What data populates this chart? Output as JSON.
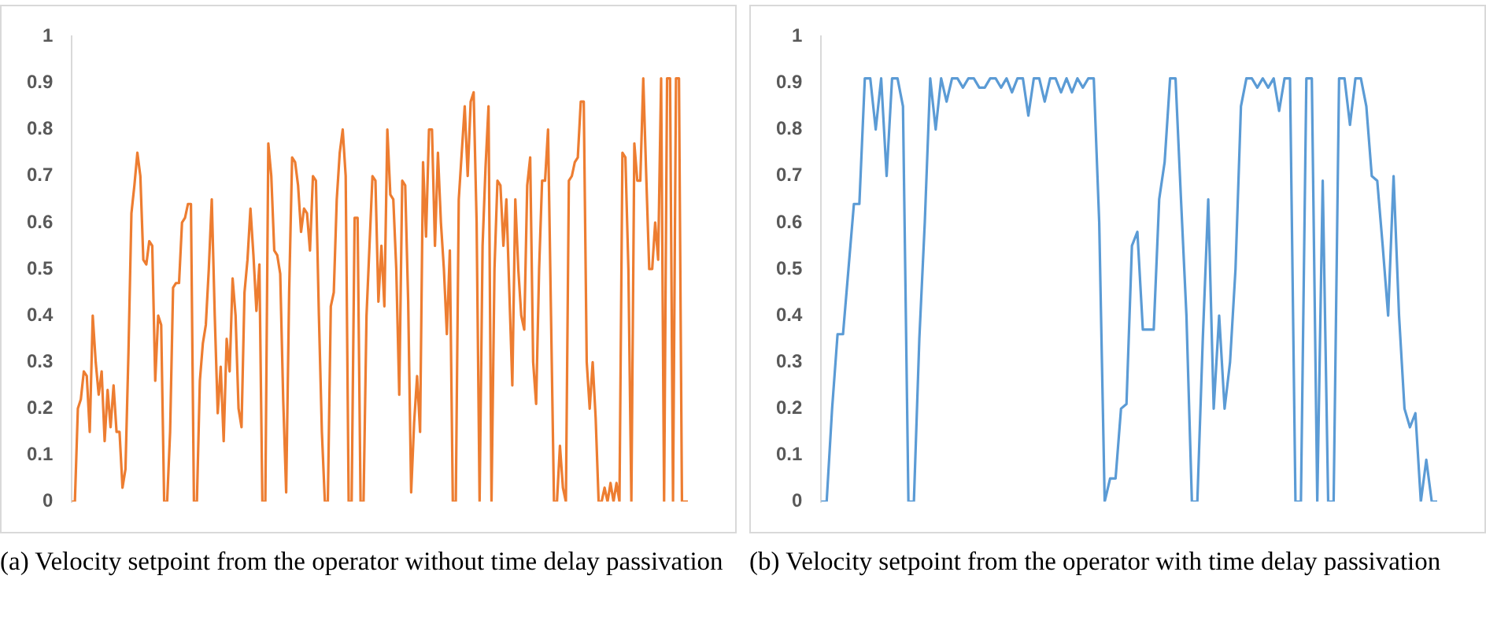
{
  "chart_data": [
    {
      "type": "line",
      "title": "(a) Velocity setpoint from the operator without time delay passivation",
      "categories": [
        null,
        null,
        null,
        null,
        null,
        null,
        null,
        null,
        null,
        null,
        null,
        null,
        null,
        null,
        null,
        null,
        null,
        null,
        null,
        null,
        null,
        null,
        null,
        null,
        null,
        null,
        null,
        null,
        null,
        null,
        null,
        null,
        null,
        null,
        null,
        null,
        null,
        null,
        null,
        null,
        null,
        null,
        null,
        null,
        null,
        null,
        null,
        null,
        null,
        null,
        null,
        null,
        null,
        null,
        null,
        null,
        null,
        null,
        null,
        null,
        null,
        null,
        null,
        null,
        null,
        null,
        null,
        null,
        null,
        null,
        null,
        null,
        null,
        null,
        null,
        null,
        null,
        null,
        null,
        null,
        null,
        null,
        null,
        null,
        null,
        null,
        null,
        null,
        null,
        null,
        null,
        null,
        null,
        null,
        null,
        null,
        null,
        null,
        null,
        null,
        null,
        null,
        null,
        null,
        null,
        null,
        null,
        null,
        null,
        null,
        null,
        null,
        null,
        null,
        null,
        null,
        null,
        null,
        null,
        null,
        null,
        null,
        null,
        null,
        null,
        null,
        null,
        null,
        null,
        null,
        null,
        null,
        null,
        null,
        null,
        null,
        null,
        null,
        null,
        null,
        null,
        null,
        null,
        null,
        null,
        null,
        null,
        null,
        null,
        null,
        null,
        null,
        null,
        null,
        null,
        null,
        null,
        null,
        null,
        null,
        null,
        null,
        null,
        null,
        null,
        null,
        null,
        null,
        null,
        null,
        null,
        null,
        null,
        null,
        null,
        null,
        null,
        null,
        null,
        null,
        null,
        null,
        null,
        null,
        null,
        null,
        null,
        null,
        null,
        null,
        null,
        null,
        null,
        null,
        null,
        null,
        null,
        null,
        null,
        null,
        null,
        null,
        null,
        null,
        null,
        null,
        null,
        null
      ],
      "series": [
        {
          "color": "#ed7d31",
          "values": [
            0,
            0,
            0.2,
            0.22,
            0.28,
            0.27,
            0.15,
            0.4,
            0.3,
            0.23,
            0.28,
            0.13,
            0.24,
            0.16,
            0.25,
            0.15,
            0.15,
            0.03,
            0.07,
            0.32,
            0.62,
            0.68,
            0.75,
            0.7,
            0.52,
            0.51,
            0.56,
            0.55,
            0.26,
            0.4,
            0.38,
            0,
            0,
            0.15,
            0.46,
            0.47,
            0.47,
            0.6,
            0.61,
            0.64,
            0.64,
            0,
            0,
            0.26,
            0.34,
            0.38,
            0.5,
            0.65,
            0.4,
            0.19,
            0.29,
            0.13,
            0.35,
            0.28,
            0.48,
            0.4,
            0.2,
            0.16,
            0.45,
            0.52,
            0.63,
            0.53,
            0.41,
            0.51,
            0,
            0,
            0.77,
            0.7,
            0.54,
            0.53,
            0.49,
            0.22,
            0.02,
            0.45,
            0.74,
            0.73,
            0.68,
            0.58,
            0.63,
            0.62,
            0.54,
            0.7,
            0.69,
            0.4,
            0.15,
            0,
            0,
            0.42,
            0.45,
            0.65,
            0.75,
            0.8,
            0.7,
            0,
            0,
            0.61,
            0.61,
            0,
            0,
            0.4,
            0.55,
            0.7,
            0.69,
            0.43,
            0.55,
            0.42,
            0.8,
            0.66,
            0.65,
            0.5,
            0.23,
            0.69,
            0.68,
            0.43,
            0.02,
            0.17,
            0.27,
            0.15,
            0.73,
            0.57,
            0.8,
            0.8,
            0.55,
            0.75,
            0.6,
            0.5,
            0.36,
            0.54,
            0,
            0,
            0.65,
            0.75,
            0.85,
            0.7,
            0.86,
            0.88,
            0.6,
            0,
            0.55,
            0.72,
            0.85,
            0,
            0.5,
            0.69,
            0.68,
            0.55,
            0.65,
            0.45,
            0.25,
            0.65,
            0.5,
            0.4,
            0.37,
            0.68,
            0.74,
            0.3,
            0.21,
            0.5,
            0.69,
            0.69,
            0.8,
            0.4,
            0,
            0,
            0.12,
            0.03,
            0,
            0.69,
            0.7,
            0.73,
            0.74,
            0.86,
            0.86,
            0.3,
            0.2,
            0.3,
            0.18,
            0,
            0,
            0.03,
            0,
            0.04,
            0,
            0.04,
            0,
            0.75,
            0.74,
            0.5,
            0,
            0.77,
            0.69,
            0.69,
            0.91,
            0.7,
            0.5,
            0.5,
            0.6,
            0.52,
            0.91,
            0,
            0.91,
            0.91,
            0,
            0.91,
            0.91,
            0,
            0,
            0
          ]
        }
      ],
      "ylim": [
        0,
        1
      ],
      "yticks": [
        0,
        0.1,
        0.2,
        0.3,
        0.4,
        0.5,
        0.6,
        0.7,
        0.8,
        0.9,
        1
      ],
      "tick_labels": "y",
      "grid": false,
      "marker": "none"
    },
    {
      "type": "line",
      "title": "(b) Velocity setpoint from the operator with time delay passivation",
      "categories": [
        null,
        null,
        null,
        null,
        null,
        null,
        null,
        null,
        null,
        null,
        null,
        null,
        null,
        null,
        null,
        null,
        null,
        null,
        null,
        null,
        null,
        null,
        null,
        null,
        null,
        null,
        null,
        null,
        null,
        null,
        null,
        null,
        null,
        null,
        null,
        null,
        null,
        null,
        null,
        null,
        null,
        null,
        null,
        null,
        null,
        null,
        null,
        null,
        null,
        null,
        null,
        null,
        null,
        null,
        null,
        null,
        null,
        null,
        null,
        null,
        null,
        null,
        null,
        null,
        null,
        null,
        null,
        null,
        null,
        null,
        null,
        null,
        null,
        null,
        null,
        null,
        null,
        null,
        null,
        null,
        null,
        null,
        null,
        null,
        null,
        null,
        null,
        null,
        null,
        null,
        null,
        null,
        null,
        null,
        null,
        null,
        null,
        null,
        null,
        null,
        null,
        null,
        null,
        null,
        null,
        null,
        null,
        null,
        null,
        null,
        null,
        null,
        null,
        null
      ],
      "series": [
        {
          "color": "#5b9bd5",
          "values": [
            0,
            0,
            0.2,
            0.36,
            0.36,
            0.5,
            0.64,
            0.64,
            0.91,
            0.91,
            0.8,
            0.91,
            0.7,
            0.91,
            0.91,
            0.85,
            0,
            0,
            0.35,
            0.6,
            0.91,
            0.8,
            0.91,
            0.86,
            0.91,
            0.91,
            0.89,
            0.91,
            0.91,
            0.89,
            0.89,
            0.91,
            0.91,
            0.89,
            0.91,
            0.88,
            0.91,
            0.91,
            0.83,
            0.91,
            0.91,
            0.86,
            0.91,
            0.91,
            0.88,
            0.91,
            0.88,
            0.91,
            0.89,
            0.91,
            0.91,
            0.6,
            0,
            0.05,
            0.05,
            0.2,
            0.21,
            0.55,
            0.58,
            0.37,
            0.37,
            0.37,
            0.65,
            0.73,
            0.91,
            0.91,
            0.65,
            0.4,
            0,
            0,
            0.35,
            0.65,
            0.2,
            0.4,
            0.2,
            0.3,
            0.5,
            0.85,
            0.91,
            0.91,
            0.89,
            0.91,
            0.89,
            0.91,
            0.84,
            0.91,
            0.91,
            0,
            0,
            0.91,
            0.91,
            0,
            0.69,
            0,
            0,
            0.91,
            0.91,
            0.81,
            0.91,
            0.91,
            0.85,
            0.7,
            0.69,
            0.55,
            0.4,
            0.7,
            0.4,
            0.2,
            0.16,
            0.19,
            0,
            0.09,
            0,
            0
          ]
        }
      ],
      "ylim": [
        0,
        1
      ],
      "yticks": [
        0,
        0.1,
        0.2,
        0.3,
        0.4,
        0.5,
        0.6,
        0.7,
        0.8,
        0.9,
        1
      ],
      "tick_labels": "y",
      "grid": false,
      "marker": "none"
    }
  ]
}
